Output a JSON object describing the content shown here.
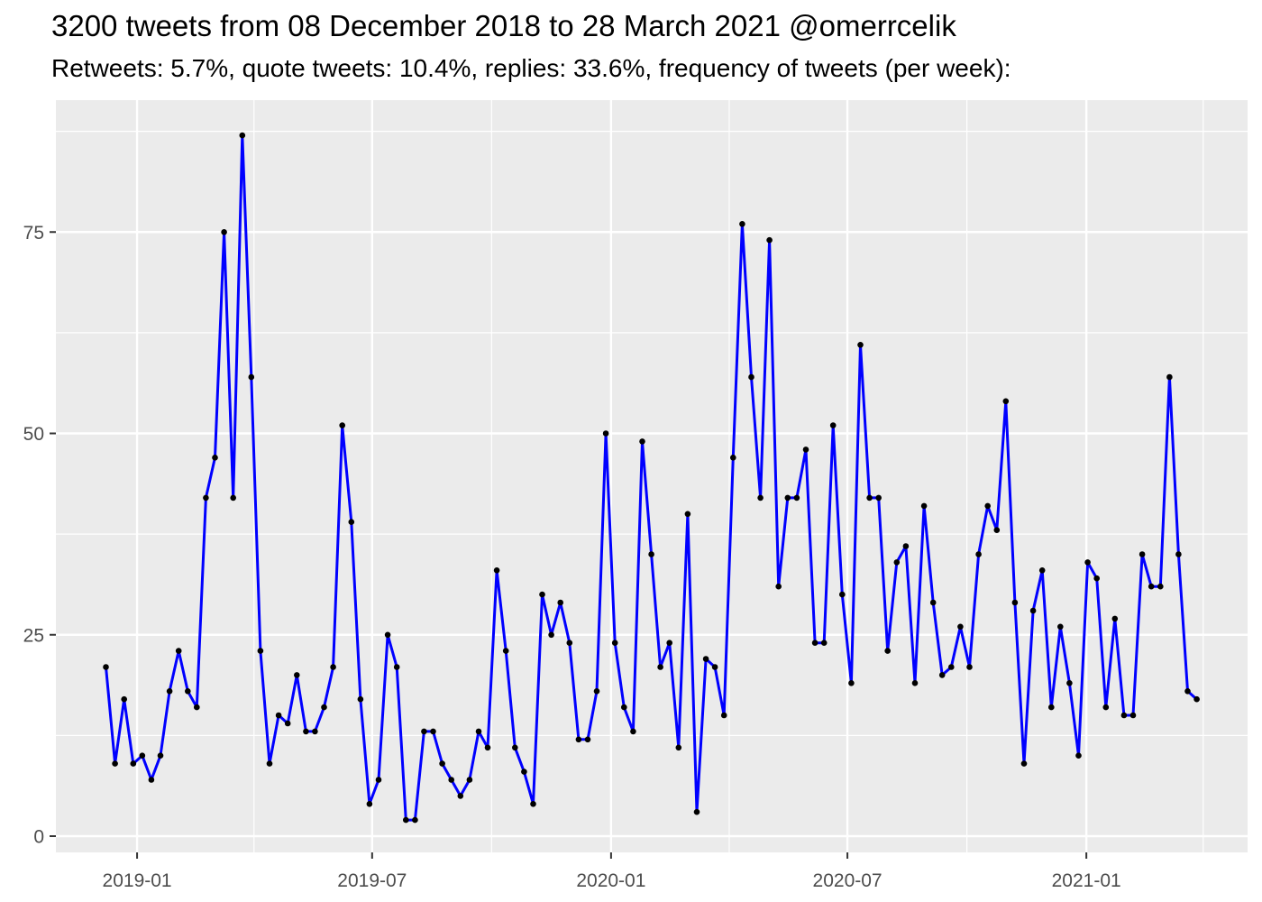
{
  "title": "3200 tweets from 08 December 2018 to 28 March 2021 @omerrcelik",
  "subtitle": "Retweets: 5.7%, quote tweets: 10.4%, replies: 33.6%, frequency of tweets (per week):",
  "chart_data": {
    "type": "line",
    "title": "3200 tweets from 08 December 2018 to 28 March 2021 @omerrcelik",
    "subtitle": "Retweets: 5.7%, quote tweets: 10.4%, replies: 33.6%, frequency of tweets (per week):",
    "xlabel": "",
    "ylabel": "",
    "x_start_date": "2018-12-08",
    "x_interval": "1 week",
    "x_tick_labels": [
      "2019-01",
      "2019-07",
      "2020-01",
      "2020-07",
      "2021-01"
    ],
    "x_minor_gridlines": [
      "2019-04",
      "2019-10",
      "2020-04",
      "2020-10",
      "2021-04"
    ],
    "y_ticks": [
      0,
      25,
      50,
      75
    ],
    "y_minor_gridlines": [
      12.5,
      37.5,
      62.5,
      87.5
    ],
    "ylim": [
      -5,
      91
    ],
    "grid": true,
    "legend": "none",
    "panel_background": "#EBEBEB",
    "gridline_color": "#FFFFFF",
    "line_color": "#0000FF",
    "point_color": "#000000",
    "axis_text_color": "#4D4D4D",
    "tick_mark_color": "#333333",
    "values": [
      21,
      9,
      17,
      9,
      10,
      7,
      10,
      18,
      23,
      18,
      16,
      42,
      47,
      75,
      42,
      87,
      57,
      23,
      9,
      15,
      14,
      20,
      13,
      13,
      16,
      21,
      51,
      39,
      17,
      4,
      7,
      25,
      21,
      2,
      2,
      13,
      13,
      9,
      7,
      5,
      7,
      13,
      11,
      33,
      23,
      11,
      8,
      4,
      30,
      25,
      29,
      24,
      12,
      12,
      18,
      50,
      24,
      16,
      13,
      49,
      35,
      21,
      24,
      11,
      40,
      3,
      22,
      21,
      15,
      47,
      76,
      57,
      42,
      74,
      31,
      42,
      42,
      48,
      24,
      24,
      51,
      30,
      19,
      61,
      42,
      42,
      23,
      34,
      36,
      19,
      41,
      29,
      20,
      21,
      26,
      21,
      35,
      41,
      38,
      54,
      29,
      9,
      28,
      33,
      16,
      26,
      19,
      10,
      34,
      32,
      16,
      27,
      15,
      15,
      35,
      31,
      31,
      57,
      35,
      18,
      17
    ]
  }
}
